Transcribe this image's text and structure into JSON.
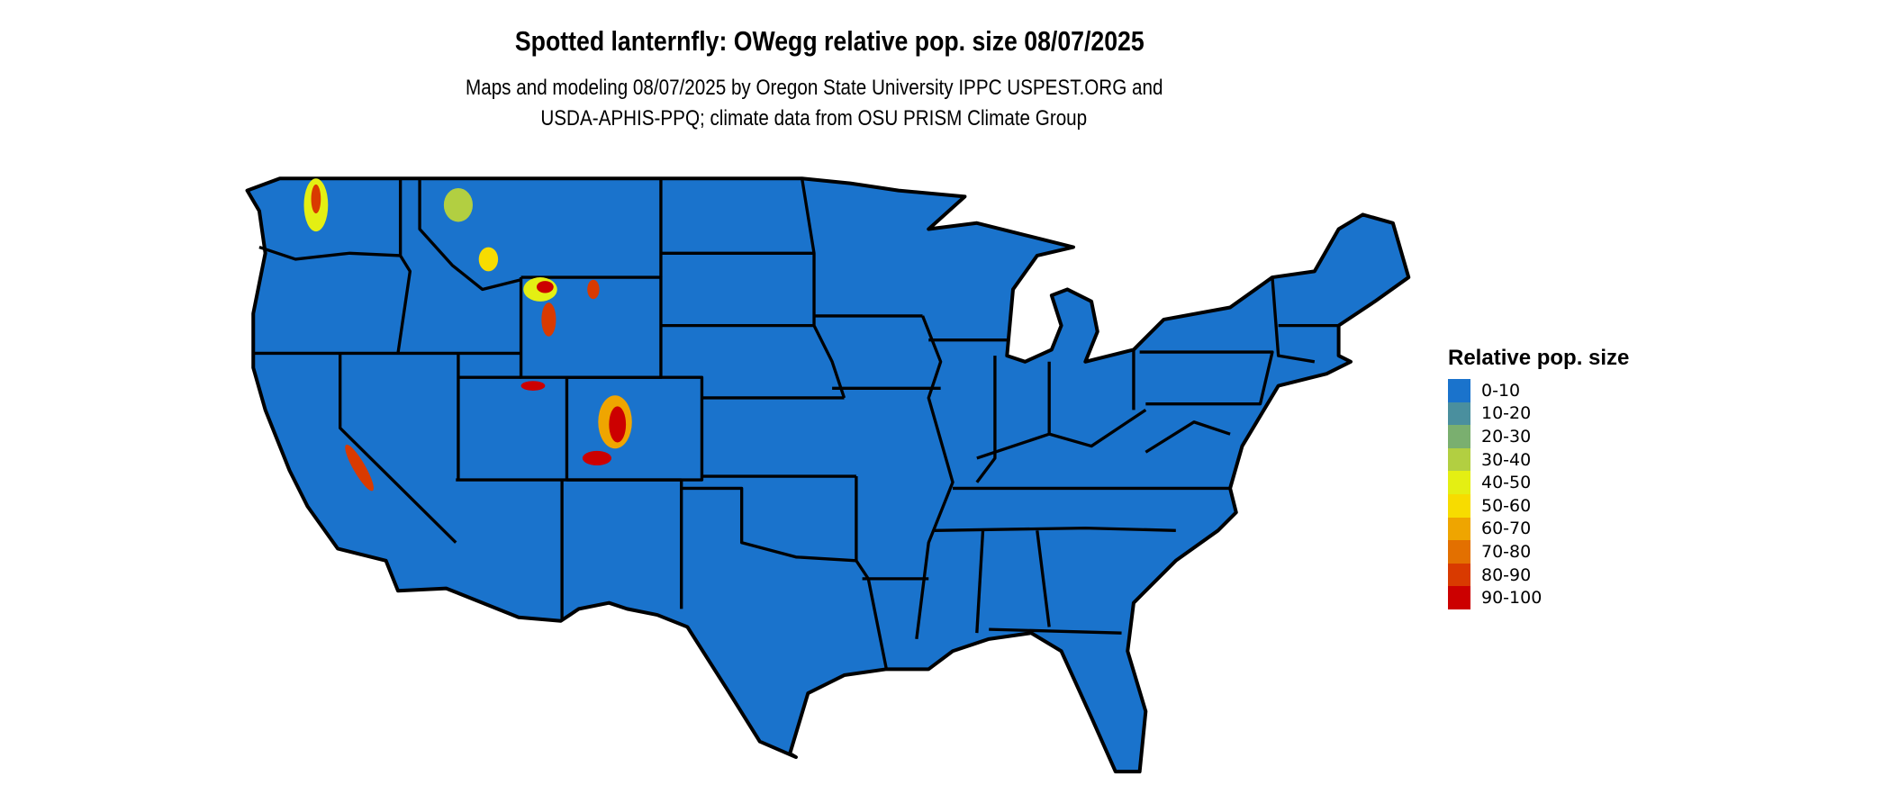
{
  "title": "Spotted lanternfly: OWegg relative pop. size 08/07/2025",
  "subtitle": {
    "line1": "Maps and modeling 08/07/2025 by Oregon State University IPPC USPEST.ORG and",
    "line2": "USDA-APHIS-PPQ; climate data from OSU PRISM Climate Group"
  },
  "map": {
    "region": "Contiguous United States",
    "base_fill_color": "#1a73cc",
    "border_color": "#000000"
  },
  "legend": {
    "title": "Relative pop. size",
    "items": [
      {
        "label": "0-10",
        "color": "#1a73cc"
      },
      {
        "label": "10-20",
        "color": "#4a8f9e"
      },
      {
        "label": "20-30",
        "color": "#7aaf6f"
      },
      {
        "label": "30-40",
        "color": "#b2cf41"
      },
      {
        "label": "40-50",
        "color": "#e4ef13"
      },
      {
        "label": "50-60",
        "color": "#f7dc00"
      },
      {
        "label": "60-70",
        "color": "#efa500"
      },
      {
        "label": "70-80",
        "color": "#e37000"
      },
      {
        "label": "80-90",
        "color": "#d93a00"
      },
      {
        "label": "90-100",
        "color": "#cc0000"
      }
    ]
  }
}
